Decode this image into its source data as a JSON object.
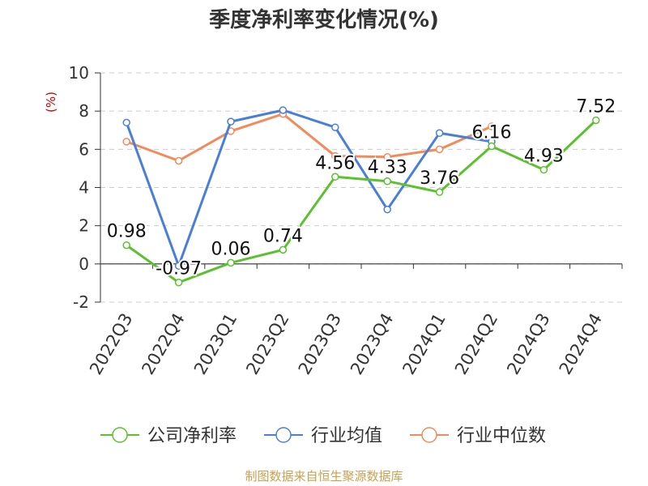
{
  "chart_data": {
    "type": "line",
    "title": "季度净利率变化情况(%)",
    "ylabel": "(%)",
    "ylim": [
      -2,
      10
    ],
    "yticks": [
      -2,
      0,
      2,
      4,
      6,
      8,
      10
    ],
    "grid": true,
    "legend_position": "bottom",
    "categories": [
      "2022Q3",
      "2022Q4",
      "2023Q1",
      "2023Q2",
      "2023Q3",
      "2023Q4",
      "2024Q1",
      "2024Q2",
      "2024Q3",
      "2024Q4"
    ],
    "series": [
      {
        "name": "公司净利率",
        "color": "#5bc12e",
        "values": [
          0.98,
          -0.97,
          0.06,
          0.74,
          4.56,
          4.33,
          3.76,
          6.16,
          4.93,
          7.52
        ],
        "labels": [
          "0.98",
          "-0.97",
          "0.06",
          "0.74",
          "4.56",
          "4.33",
          "3.76",
          "6.16",
          "4.93",
          "7.52"
        ]
      },
      {
        "name": "行业均值",
        "color": "#4a7fd9",
        "values": [
          7.4,
          -0.1,
          7.45,
          8.05,
          7.15,
          2.85,
          6.85,
          6.4,
          null,
          null
        ]
      },
      {
        "name": "行业中位数",
        "color": "#f28a5a",
        "values": [
          6.4,
          5.4,
          6.95,
          7.85,
          5.65,
          5.6,
          6.0,
          7.2,
          null,
          null
        ]
      }
    ]
  },
  "source": "制图数据来自恒生聚源数据库"
}
